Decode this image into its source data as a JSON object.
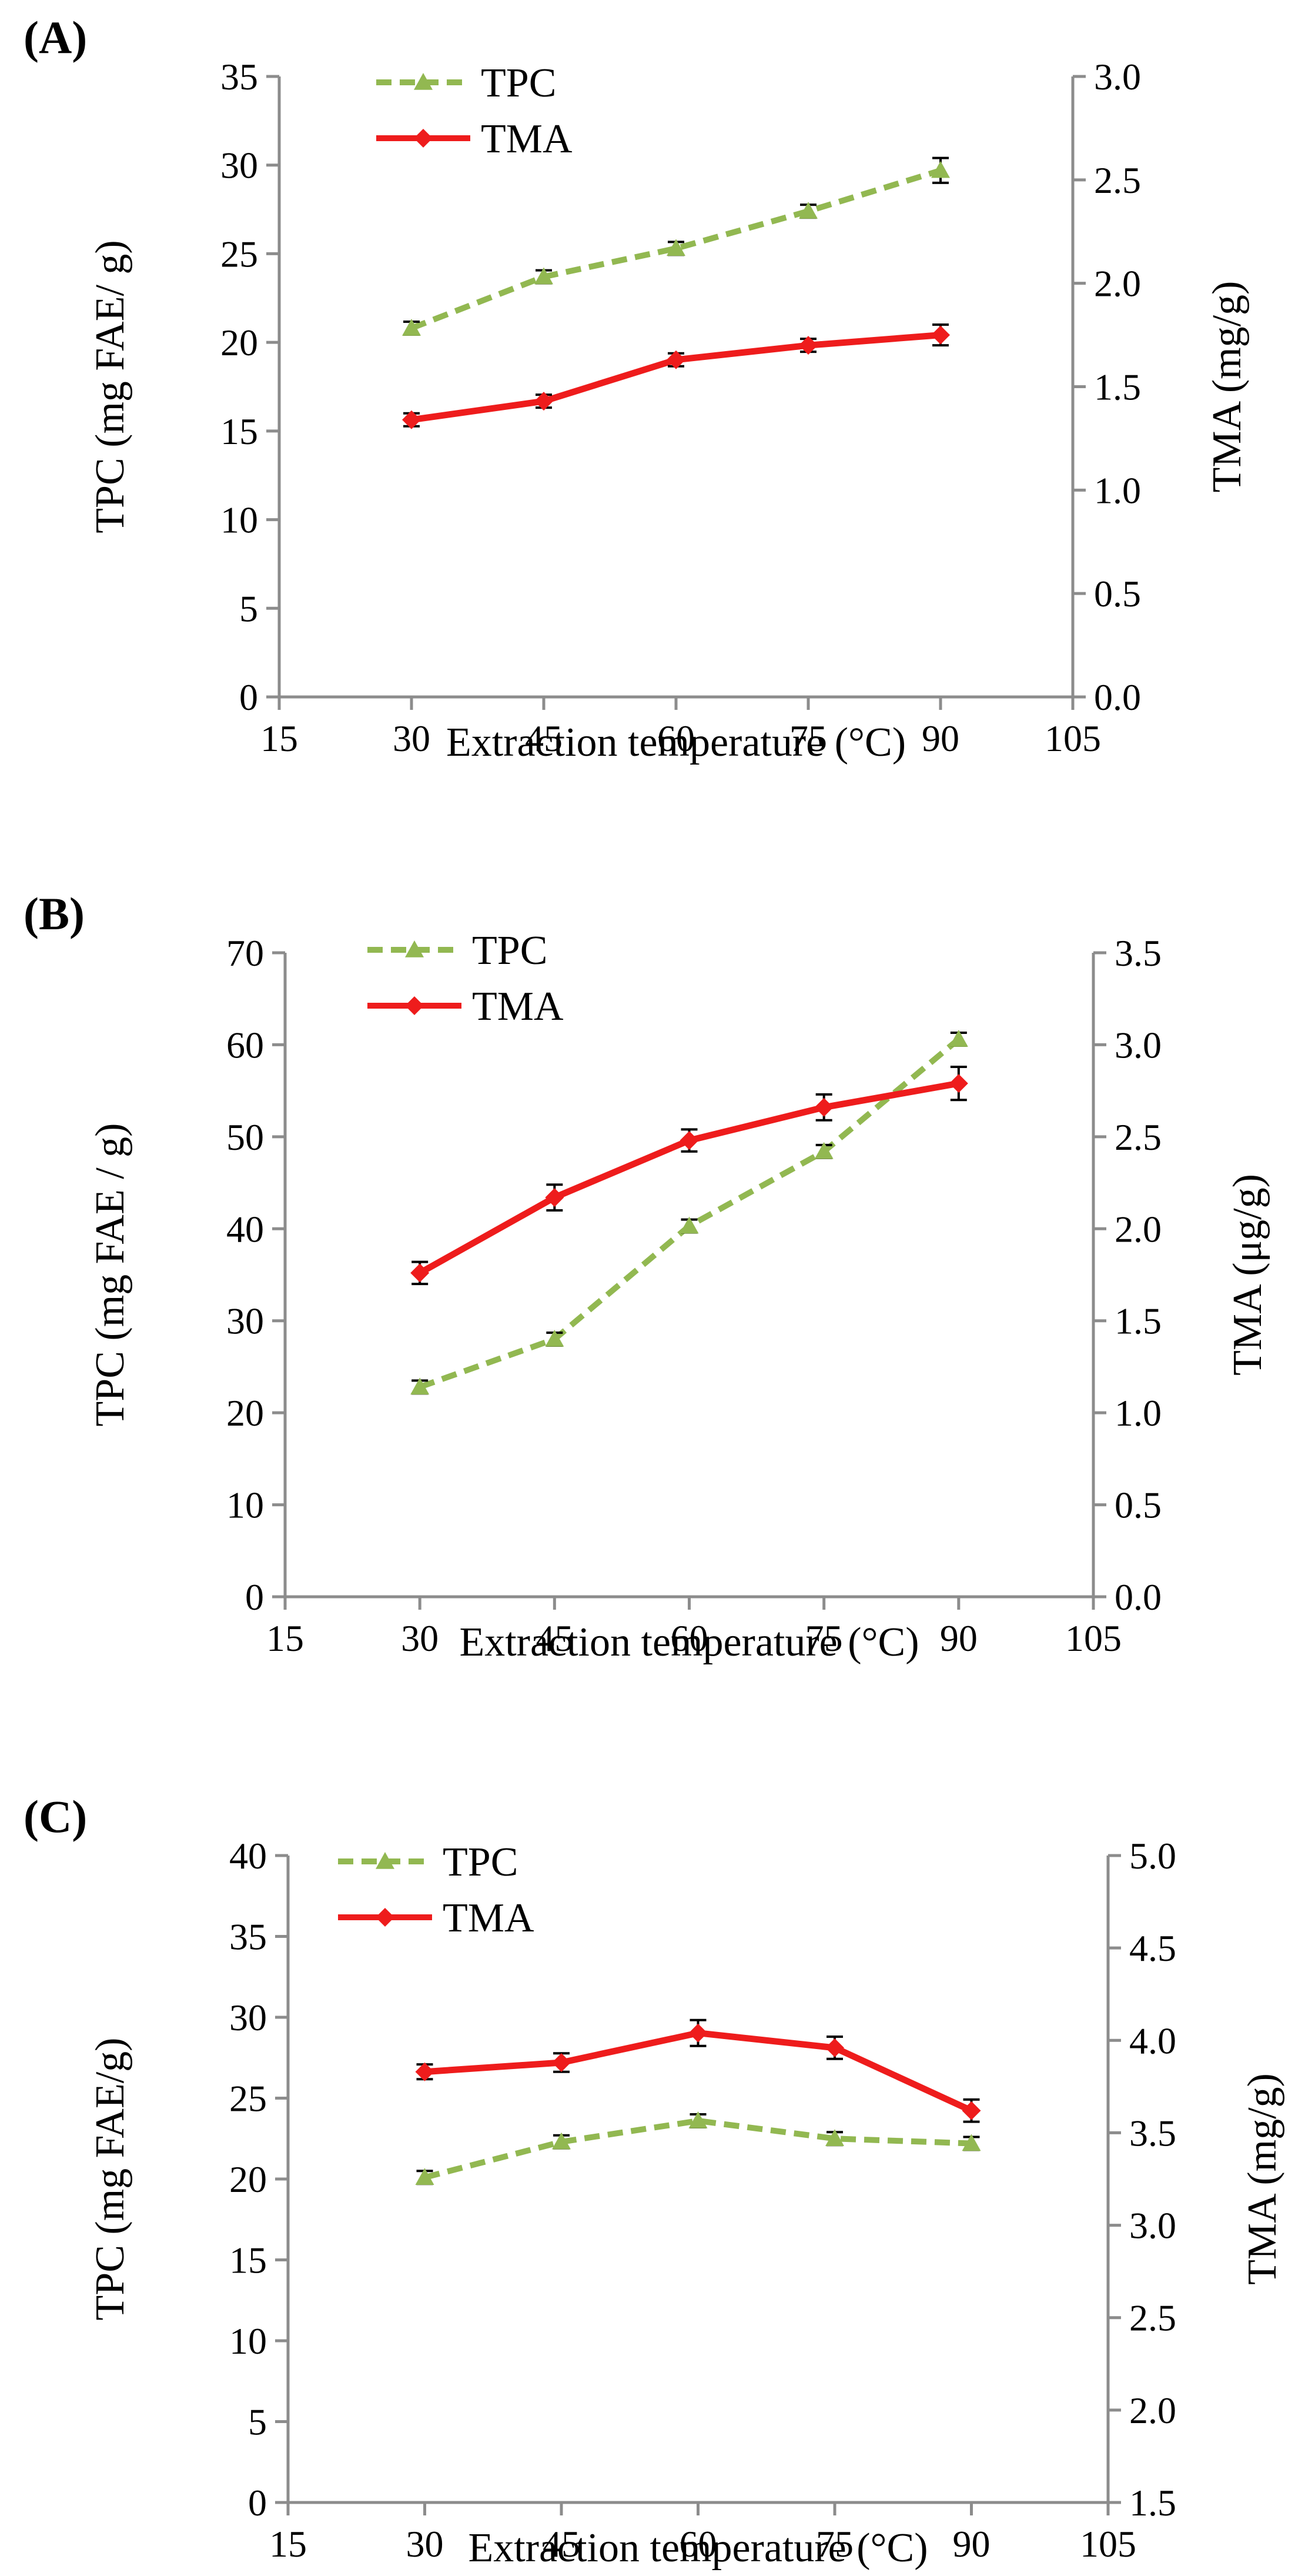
{
  "colors": {
    "tpc": "#92b851",
    "tma": "#ee1c1c",
    "axis": "#8c8c8c",
    "errorbar": "#000000"
  },
  "chart_data": [
    {
      "type": "line",
      "panel_label": "(A)",
      "xlabel": "Extraction temperature (°C)",
      "ylabel": "TPC (mg FAE/ g)",
      "y2label": "TMA (mg/g)",
      "xlim": [
        15,
        105
      ],
      "x_ticks": [
        "15",
        "30",
        "45",
        "60",
        "75",
        "90",
        "105"
      ],
      "ylim": [
        0,
        35
      ],
      "y_ticks": [
        "0",
        "5",
        "10",
        "15",
        "20",
        "25",
        "30",
        "35"
      ],
      "y2lim": [
        0,
        3
      ],
      "y2_ticks": [
        "0.0",
        "0.5",
        "1.0",
        "1.5",
        "2.0",
        "2.5",
        "3.0"
      ],
      "grid": false,
      "legend_position": "top-left",
      "x": [
        30,
        45,
        60,
        75,
        90
      ],
      "series": [
        {
          "name": "TPC",
          "axis": "left",
          "style": "dashed",
          "marker": "triangle",
          "values": [
            20.8,
            23.7,
            25.3,
            27.4,
            29.7
          ],
          "errors": [
            0.3,
            0.3,
            0.3,
            0.3,
            0.7
          ]
        },
        {
          "name": "TMA",
          "axis": "right",
          "style": "solid",
          "marker": "diamond",
          "values": [
            1.34,
            1.43,
            1.63,
            1.7,
            1.75
          ],
          "errors": [
            0.02,
            0.02,
            0.03,
            0.03,
            0.05
          ]
        }
      ]
    },
    {
      "type": "line",
      "panel_label": "(B)",
      "xlabel": "Extraction temperature (°C)",
      "ylabel": "TPC (mg FAE / g)",
      "y2label": "TMA (μg/g)",
      "xlim": [
        15,
        105
      ],
      "x_ticks": [
        "15",
        "30",
        "45",
        "60",
        "75",
        "90",
        "105"
      ],
      "ylim": [
        0,
        70
      ],
      "y_ticks": [
        "0",
        "10",
        "20",
        "30",
        "40",
        "50",
        "60",
        "70"
      ],
      "y2lim": [
        0,
        3.5
      ],
      "y2_ticks": [
        "0.0",
        "0.5",
        "1.0",
        "1.5",
        "2.0",
        "2.5",
        "3.0",
        "3.5"
      ],
      "grid": false,
      "legend_position": "top-left",
      "x": [
        30,
        45,
        60,
        75,
        90
      ],
      "series": [
        {
          "name": "TPC",
          "axis": "left",
          "style": "dashed",
          "marker": "triangle",
          "values": [
            22.8,
            28.0,
            40.3,
            48.4,
            60.6
          ],
          "errors": [
            0.5,
            0.5,
            0.5,
            0.6,
            0.6
          ]
        },
        {
          "name": "TMA",
          "axis": "right",
          "style": "solid",
          "marker": "diamond",
          "values": [
            1.76,
            2.17,
            2.48,
            2.66,
            2.79
          ],
          "errors": [
            0.06,
            0.07,
            0.06,
            0.07,
            0.09
          ]
        }
      ]
    },
    {
      "type": "line",
      "panel_label": "(C)",
      "xlabel": "Extraction temperature (°C)",
      "ylabel": "TPC (mg FAE/g)",
      "y2label": "TMA (mg/g)",
      "xlim": [
        15,
        105
      ],
      "x_ticks": [
        "15",
        "30",
        "45",
        "60",
        "75",
        "90",
        "105"
      ],
      "ylim": [
        0,
        40
      ],
      "y_ticks": [
        "0",
        "5",
        "10",
        "15",
        "20",
        "25",
        "30",
        "35",
        "40"
      ],
      "y2lim": [
        1.5,
        5.0
      ],
      "y2_ticks": [
        "1.5",
        "2.0",
        "2.5",
        "3.0",
        "3.5",
        "4.0",
        "4.5",
        "5.0"
      ],
      "grid": false,
      "legend_position": "top-left",
      "x": [
        30,
        45,
        60,
        75,
        90
      ],
      "series": [
        {
          "name": "TPC",
          "axis": "left",
          "style": "dashed",
          "marker": "triangle",
          "values": [
            20.1,
            22.3,
            23.6,
            22.5,
            22.2
          ],
          "errors": [
            0.3,
            0.3,
            0.4,
            0.3,
            0.3
          ]
        },
        {
          "name": "TMA",
          "axis": "right",
          "style": "solid",
          "marker": "diamond",
          "values": [
            3.83,
            3.88,
            4.04,
            3.96,
            3.62
          ],
          "errors": [
            0.04,
            0.05,
            0.07,
            0.06,
            0.06
          ]
        }
      ]
    }
  ]
}
